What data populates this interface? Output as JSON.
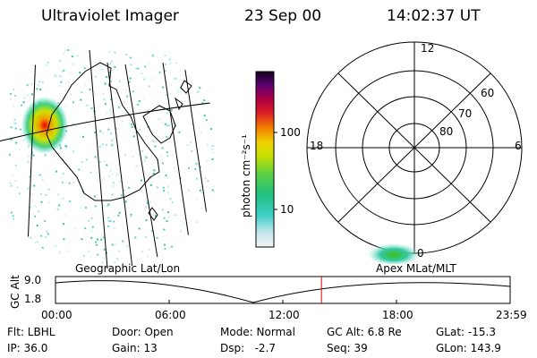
{
  "header": {
    "title": "Ultraviolet Imager",
    "date": "23 Sep 00",
    "time": "14:02:37 UT"
  },
  "colorbar": {
    "unit_label": "photon cm⁻²s⁻¹",
    "tick_100": "100",
    "tick_10": "10"
  },
  "polar": {
    "mlt_12": "12",
    "mlt_18": "18",
    "mlt_6": "6",
    "mlt_0": "0",
    "lat_60": "60",
    "lat_70": "70",
    "lat_80": "80"
  },
  "timeline": {
    "left_caption": "Geographic Lat/Lon",
    "right_caption": "Apex MLat/MLT",
    "axis_label": "GC Alt",
    "y_top": "9.0",
    "y_bottom": "1.8",
    "ticks": [
      "00:00",
      "06:00",
      "12:00",
      "18:00",
      "23:59"
    ],
    "current_fraction": 0.585,
    "accent_color": "#e00000"
  },
  "status": {
    "flt": "Flt: LBHL",
    "ip": "IP: 36.0",
    "door": "Door: Open",
    "gain": "Gain: 13",
    "mode": "Mode: Normal",
    "dsp": "Dsp:   -2.7",
    "gcalt": "GC Alt: 6.8 Re",
    "seq": "Seq: 39",
    "glat": "GLat: -15.3",
    "glon": "GLon: 143.9"
  }
}
